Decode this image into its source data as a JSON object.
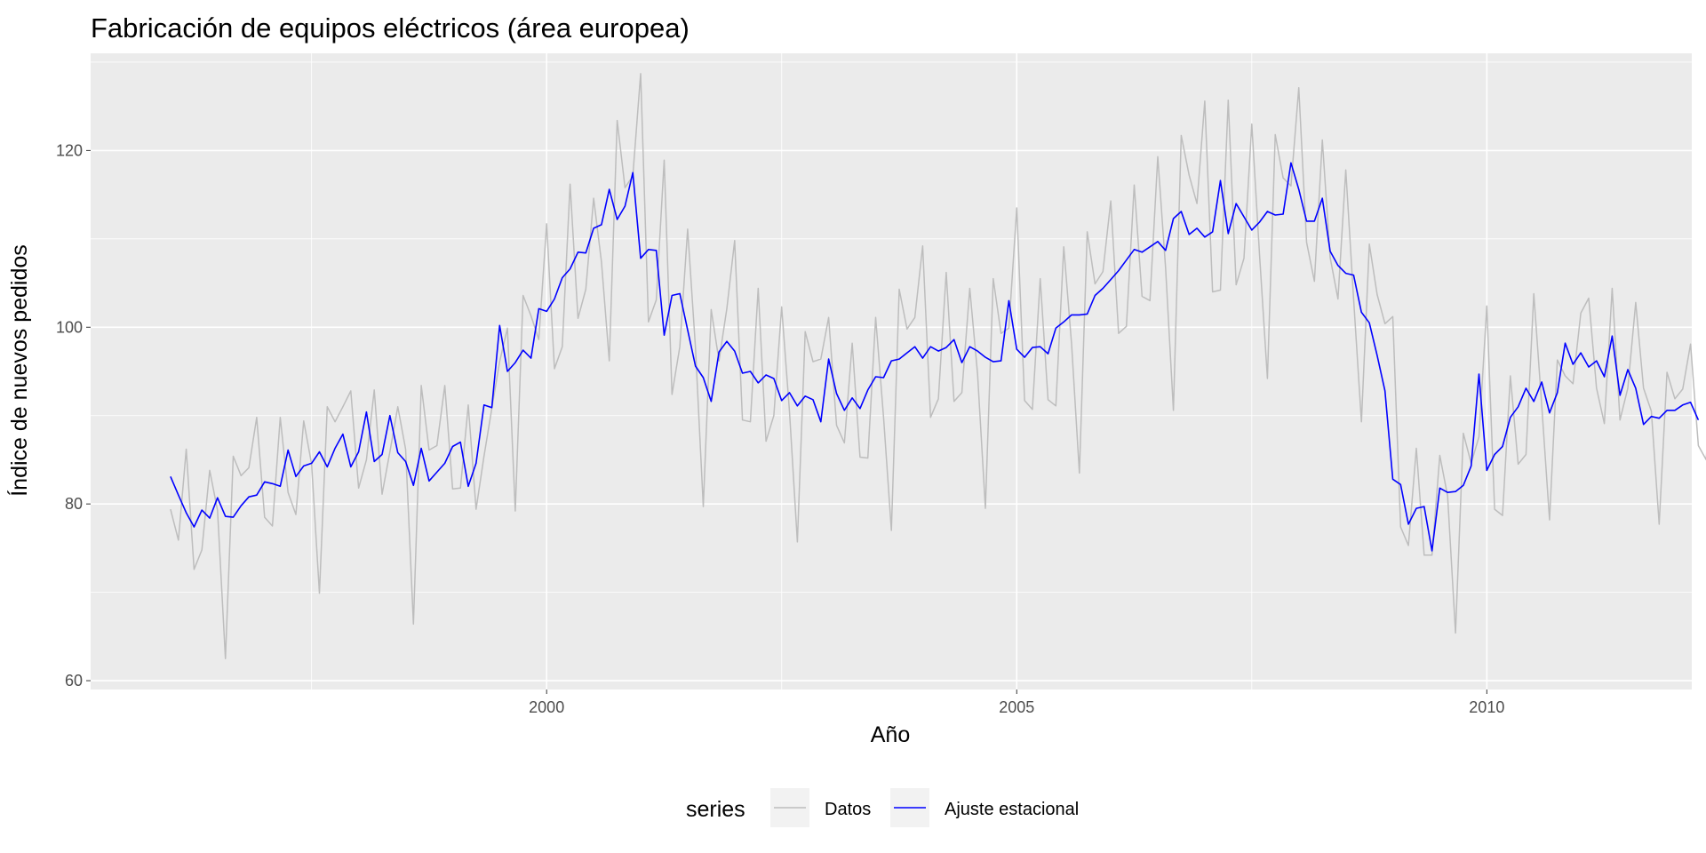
{
  "chart_data": {
    "type": "line",
    "title": "Fabricación de equipos eléctricos (área europea)",
    "xlabel": "Año",
    "ylabel": "Índice de nuevos pedidos",
    "x_ticks": [
      2000,
      2005,
      2010
    ],
    "y_ticks": [
      60,
      80,
      100,
      120
    ],
    "xlim": [
      1995.15,
      2012.18
    ],
    "ylim": [
      59,
      131
    ],
    "grid": true,
    "background": "#ebebeb",
    "legend": {
      "title": "series",
      "position": "bottom"
    },
    "start": [
      1996,
      1
    ],
    "frequency": 12,
    "series": [
      {
        "name": "Datos",
        "color": "#bdbdbd",
        "values": [
          79.4,
          75.9,
          86.2,
          72.6,
          74.8,
          83.8,
          79.3,
          62.5,
          85.4,
          83.2,
          84.1,
          89.8,
          78.5,
          77.5,
          89.8,
          81.3,
          78.8,
          89.4,
          84.5,
          69.9,
          91.0,
          89.3,
          91.0,
          92.8,
          81.8,
          85.0,
          92.9,
          81.1,
          85.9,
          91.0,
          86.2,
          66.4,
          93.4,
          86.1,
          86.6,
          93.4,
          81.7,
          81.8,
          91.2,
          79.4,
          85.4,
          90.8,
          96.1,
          99.9,
          79.2,
          103.6,
          101.3,
          98.6,
          111.7,
          95.3,
          97.8,
          116.2,
          101.0,
          104.3,
          114.6,
          107.4,
          96.2,
          123.4,
          115.8,
          117.1,
          128.7,
          100.6,
          103.1,
          118.9,
          92.4,
          97.8,
          111.1,
          97.7,
          79.7,
          102.0,
          96.2,
          102.1,
          109.8,
          89.5,
          89.3,
          104.4,
          87.1,
          90.0,
          102.3,
          90.5,
          75.7,
          99.5,
          96.1,
          96.4,
          101.1,
          88.9,
          86.9,
          98.2,
          85.3,
          85.2,
          101.1,
          89.8,
          77.0,
          104.3,
          99.8,
          101.1,
          109.2,
          89.8,
          91.9,
          106.2,
          91.6,
          92.6,
          104.4,
          94.7,
          79.5,
          105.5,
          99.3,
          99.9,
          113.5,
          91.7,
          90.7,
          105.5,
          91.8,
          91.1,
          109.1,
          98.1,
          83.5,
          110.8,
          104.9,
          106.3,
          114.3,
          99.3,
          100.1,
          116.1,
          103.5,
          103.0,
          119.3,
          106.7,
          90.6,
          121.7,
          117.2,
          114.0,
          125.6,
          104.0,
          104.2,
          125.7,
          104.8,
          107.8,
          123.0,
          108.1,
          94.2,
          121.8,
          116.9,
          116.0,
          127.1,
          109.6,
          105.2,
          121.2,
          107.9,
          103.2,
          117.8,
          103.2,
          89.3,
          109.4,
          103.7,
          100.4,
          101.2,
          77.4,
          75.3,
          86.3,
          74.2,
          74.2,
          85.5,
          80.9,
          65.4,
          88.0,
          84.6,
          87.6,
          102.4,
          79.4,
          78.7,
          94.5,
          84.5,
          85.6,
          103.8,
          91.2,
          78.2,
          96.3,
          94.5,
          93.6,
          101.6,
          103.3,
          93.1,
          89.1,
          104.4,
          89.5,
          93.1,
          102.8,
          93.1,
          90.5,
          77.7,
          94.9,
          91.9,
          93.0,
          98.1,
          86.6,
          85.0,
          97.8
        ]
      },
      {
        "name": "Ajuste estacional",
        "color": "#0000ff",
        "values": [
          83.1,
          81.0,
          79.0,
          77.4,
          79.3,
          78.4,
          80.7,
          78.6,
          78.5,
          79.8,
          80.8,
          81.0,
          82.5,
          82.3,
          82.0,
          86.1,
          83.1,
          84.3,
          84.6,
          85.9,
          84.2,
          86.3,
          87.9,
          84.2,
          85.9,
          90.4,
          84.8,
          85.6,
          90.0,
          85.8,
          84.8,
          82.1,
          86.3,
          82.6,
          83.6,
          84.6,
          86.5,
          87.0,
          82.0,
          84.6,
          91.2,
          90.9,
          100.2,
          95.0,
          96.0,
          97.4,
          96.5,
          102.1,
          101.8,
          103.2,
          105.6,
          106.6,
          108.5,
          108.4,
          111.2,
          111.6,
          115.6,
          112.2,
          113.7,
          117.5,
          107.8,
          108.8,
          108.7,
          99.1,
          103.6,
          103.8,
          99.7,
          95.6,
          94.3,
          91.6,
          97.2,
          98.4,
          97.3,
          94.8,
          95.0,
          93.7,
          94.6,
          94.2,
          91.7,
          92.6,
          91.1,
          92.2,
          91.8,
          89.3,
          96.4,
          92.5,
          90.6,
          92.0,
          90.8,
          92.9,
          94.4,
          94.3,
          96.2,
          96.4,
          97.1,
          97.8,
          96.5,
          97.8,
          97.3,
          97.7,
          98.6,
          96.0,
          97.8,
          97.3,
          96.6,
          96.1,
          96.2,
          103.0,
          97.5,
          96.6,
          97.7,
          97.8,
          97.0,
          99.9,
          100.6,
          101.4,
          101.4,
          101.5,
          103.6,
          104.4,
          105.4,
          106.4,
          107.6,
          108.8,
          108.5,
          109.1,
          109.7,
          108.7,
          112.3,
          113.1,
          110.5,
          111.2,
          110.2,
          110.8,
          116.6,
          110.6,
          114.0,
          112.5,
          111.0,
          111.9,
          113.1,
          112.7,
          112.8,
          118.6,
          115.6,
          112.0,
          112.0,
          114.6,
          108.6,
          107.0,
          106.1,
          105.9,
          101.7,
          100.5,
          96.8,
          92.8,
          82.8,
          82.2,
          77.7,
          79.5,
          79.7,
          74.7,
          81.8,
          81.3,
          81.4,
          82.1,
          84.3,
          94.7,
          83.8,
          85.6,
          86.5,
          89.8,
          91.0,
          93.1,
          91.6,
          93.8,
          90.3,
          92.6,
          98.2,
          95.8,
          97.1,
          95.5,
          96.2,
          94.4,
          99.0,
          92.3,
          95.2,
          93.1,
          89.0,
          89.9,
          89.7,
          90.6,
          90.6,
          91.2,
          91.5,
          89.5
        ]
      }
    ]
  }
}
